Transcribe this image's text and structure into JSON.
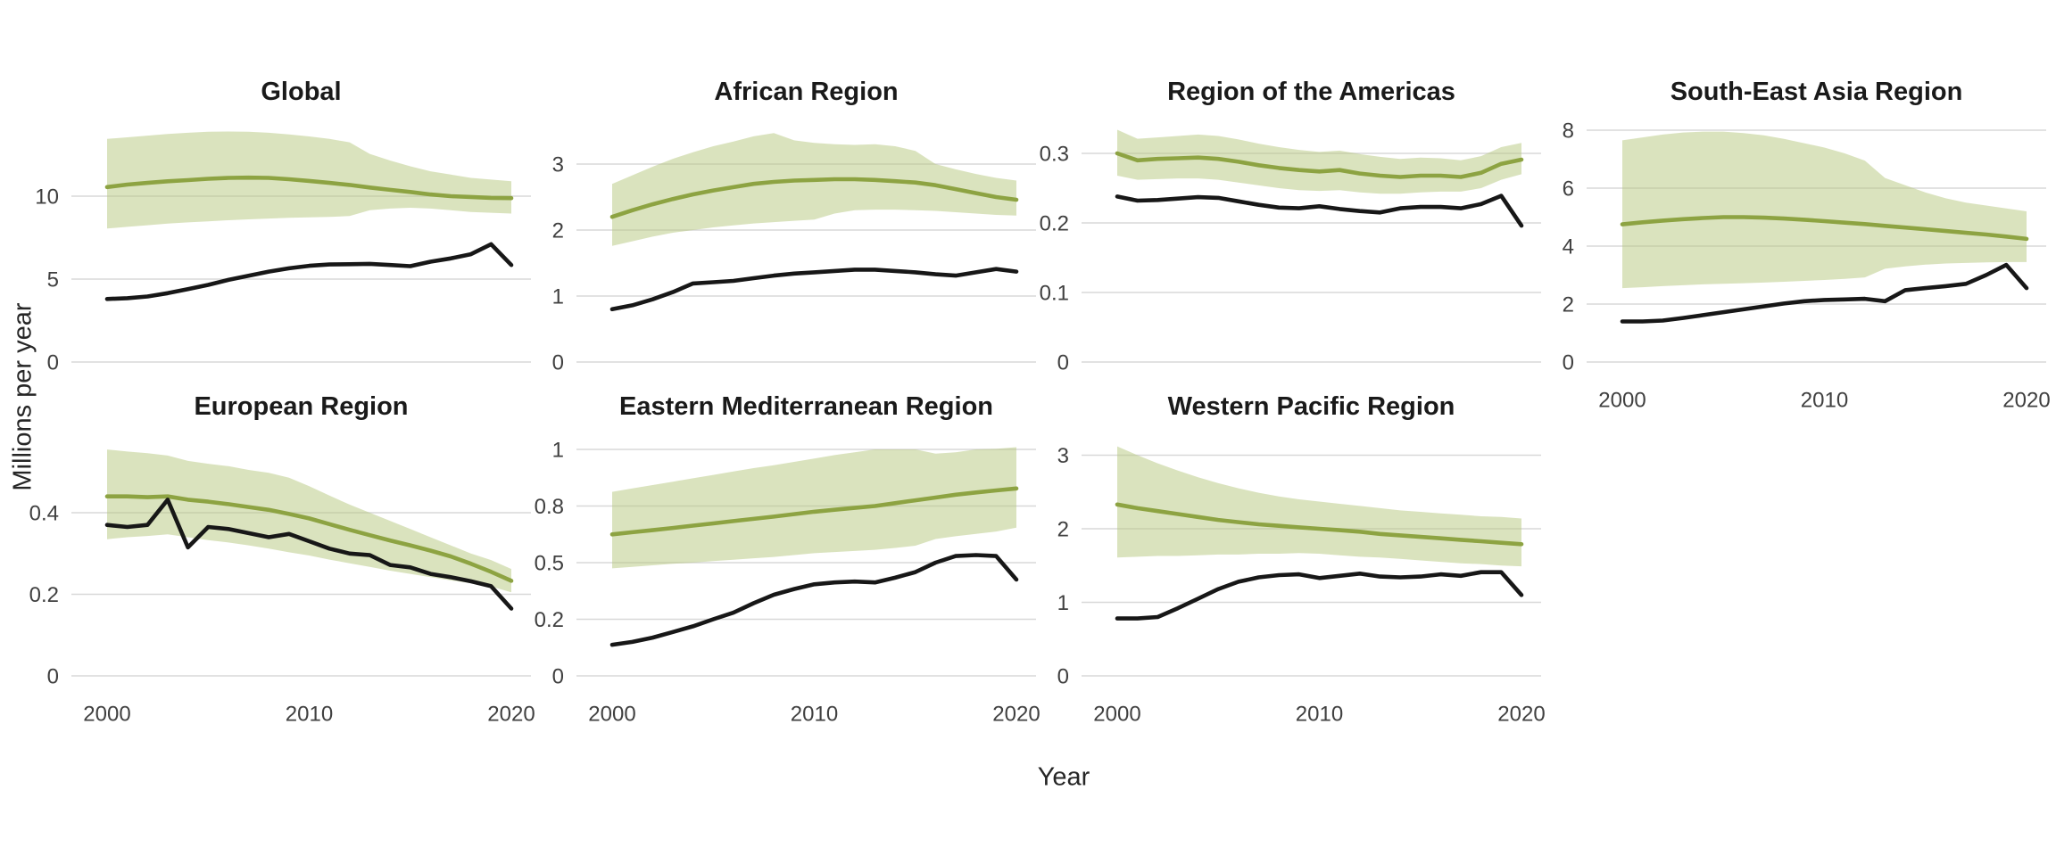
{
  "figure": {
    "xlabel": "Year",
    "ylabel": "Millions per year"
  },
  "colors": {
    "green_line": "#8da342",
    "band_fill": "#b5c87d",
    "black_line": "#171717",
    "gridline": "#d8d8d8",
    "tick_text": "#404040",
    "title_text": "#1a1a1a",
    "background": "#ffffff"
  },
  "chart_data": {
    "type": "line",
    "x": [
      2000,
      2001,
      2002,
      2003,
      2004,
      2005,
      2006,
      2007,
      2008,
      2009,
      2010,
      2011,
      2012,
      2013,
      2014,
      2015,
      2016,
      2017,
      2018,
      2019,
      2020
    ],
    "x_ticks": [
      2000,
      2010,
      2020
    ],
    "x_tick_labels": [
      "2000",
      "2010",
      "2020"
    ],
    "xlabel": "Year",
    "ylabel": "Millions per year",
    "grid": "horizontal-only",
    "legend": "none",
    "panels": [
      {
        "title": "Global",
        "row": 0,
        "col": 0,
        "x_axis_labels": false,
        "y_tick_values": [
          0,
          5,
          10
        ],
        "y_tick_labels": [
          "0",
          "5",
          "10"
        ],
        "green_line": [
          10.55,
          10.7,
          10.8,
          10.9,
          10.97,
          11.05,
          11.1,
          11.12,
          11.1,
          11.02,
          10.92,
          10.8,
          10.68,
          10.52,
          10.38,
          10.25,
          10.1,
          10.0,
          9.95,
          9.9,
          9.88
        ],
        "band_lower": [
          8.05,
          8.15,
          8.25,
          8.35,
          8.42,
          8.48,
          8.55,
          8.6,
          8.65,
          8.7,
          8.72,
          8.75,
          8.8,
          9.15,
          9.25,
          9.3,
          9.25,
          9.15,
          9.05,
          9.0,
          8.95
        ],
        "band_upper": [
          13.45,
          13.55,
          13.65,
          13.75,
          13.82,
          13.88,
          13.9,
          13.88,
          13.82,
          13.72,
          13.6,
          13.45,
          13.25,
          12.55,
          12.15,
          11.8,
          11.5,
          11.3,
          11.1,
          11.0,
          10.9
        ],
        "black_line": [
          3.8,
          3.85,
          3.95,
          4.15,
          4.4,
          4.65,
          4.95,
          5.2,
          5.45,
          5.65,
          5.8,
          5.88,
          5.9,
          5.92,
          5.85,
          5.78,
          6.05,
          6.25,
          6.5,
          7.1,
          5.85
        ]
      },
      {
        "title": "African Region",
        "row": 0,
        "col": 1,
        "x_axis_labels": false,
        "y_tick_values": [
          0,
          1,
          2,
          3
        ],
        "y_tick_labels": [
          "0",
          "1",
          "2",
          "3"
        ],
        "green_line": [
          2.2,
          2.3,
          2.39,
          2.47,
          2.54,
          2.6,
          2.65,
          2.7,
          2.73,
          2.75,
          2.76,
          2.77,
          2.77,
          2.76,
          2.74,
          2.72,
          2.68,
          2.62,
          2.56,
          2.5,
          2.46
        ],
        "band_lower": [
          1.76,
          1.83,
          1.9,
          1.96,
          2.0,
          2.04,
          2.07,
          2.1,
          2.12,
          2.14,
          2.16,
          2.25,
          2.3,
          2.31,
          2.31,
          2.3,
          2.29,
          2.27,
          2.25,
          2.23,
          2.22
        ],
        "band_upper": [
          2.7,
          2.83,
          2.96,
          3.08,
          3.18,
          3.27,
          3.34,
          3.42,
          3.47,
          3.36,
          3.32,
          3.3,
          3.29,
          3.3,
          3.27,
          3.2,
          3.0,
          2.92,
          2.85,
          2.79,
          2.75
        ],
        "black_line": [
          0.8,
          0.86,
          0.95,
          1.06,
          1.19,
          1.21,
          1.23,
          1.27,
          1.31,
          1.34,
          1.36,
          1.38,
          1.4,
          1.4,
          1.38,
          1.36,
          1.33,
          1.31,
          1.36,
          1.41,
          1.37
        ]
      },
      {
        "title": "Region of the Americas",
        "row": 0,
        "col": 2,
        "x_axis_labels": false,
        "y_tick_values": [
          0,
          0.1,
          0.2,
          0.3
        ],
        "y_tick_labels": [
          "0",
          "0.1",
          "0.2",
          "0.3"
        ],
        "green_line": [
          0.3,
          0.29,
          0.292,
          0.293,
          0.294,
          0.292,
          0.288,
          0.283,
          0.279,
          0.276,
          0.274,
          0.276,
          0.271,
          0.268,
          0.266,
          0.268,
          0.268,
          0.266,
          0.272,
          0.285,
          0.291
        ],
        "band_lower": [
          0.268,
          0.262,
          0.263,
          0.264,
          0.264,
          0.262,
          0.258,
          0.254,
          0.25,
          0.247,
          0.246,
          0.247,
          0.244,
          0.242,
          0.242,
          0.244,
          0.245,
          0.245,
          0.25,
          0.262,
          0.27
        ],
        "band_upper": [
          0.334,
          0.321,
          0.323,
          0.325,
          0.327,
          0.325,
          0.32,
          0.314,
          0.309,
          0.305,
          0.302,
          0.304,
          0.299,
          0.295,
          0.292,
          0.294,
          0.293,
          0.29,
          0.296,
          0.309,
          0.315
        ],
        "black_line": [
          0.238,
          0.232,
          0.233,
          0.235,
          0.237,
          0.236,
          0.231,
          0.226,
          0.222,
          0.221,
          0.224,
          0.22,
          0.217,
          0.215,
          0.221,
          0.223,
          0.223,
          0.221,
          0.227,
          0.239,
          0.196
        ]
      },
      {
        "title": "South-East Asia Region",
        "row": 0,
        "col": 3,
        "x_axis_labels": true,
        "y_tick_values": [
          0,
          2,
          4,
          6,
          8
        ],
        "y_tick_labels": [
          "0",
          "2",
          "4",
          "6",
          "8"
        ],
        "green_line": [
          4.75,
          4.82,
          4.88,
          4.93,
          4.97,
          5.0,
          5.0,
          4.98,
          4.95,
          4.91,
          4.86,
          4.81,
          4.76,
          4.7,
          4.64,
          4.58,
          4.52,
          4.46,
          4.4,
          4.33,
          4.25
        ],
        "band_lower": [
          2.55,
          2.58,
          2.62,
          2.65,
          2.68,
          2.7,
          2.72,
          2.74,
          2.77,
          2.8,
          2.83,
          2.87,
          2.92,
          3.22,
          3.3,
          3.36,
          3.4,
          3.42,
          3.44,
          3.45,
          3.45
        ],
        "band_upper": [
          7.65,
          7.75,
          7.85,
          7.92,
          7.95,
          7.95,
          7.9,
          7.82,
          7.7,
          7.55,
          7.4,
          7.2,
          6.95,
          6.35,
          6.1,
          5.85,
          5.65,
          5.5,
          5.4,
          5.3,
          5.2
        ],
        "black_line": [
          1.4,
          1.4,
          1.43,
          1.52,
          1.62,
          1.72,
          1.82,
          1.92,
          2.02,
          2.1,
          2.14,
          2.16,
          2.18,
          2.1,
          2.48,
          2.55,
          2.62,
          2.7,
          3.0,
          3.35,
          2.55
        ]
      },
      {
        "title": "European Region",
        "row": 1,
        "col": 0,
        "x_axis_labels": true,
        "y_tick_values": [
          0,
          0.2,
          0.4
        ],
        "y_tick_labels": [
          "0",
          "0.2",
          "0.4"
        ],
        "green_line": [
          0.44,
          0.44,
          0.438,
          0.44,
          0.432,
          0.427,
          0.421,
          0.414,
          0.407,
          0.397,
          0.386,
          0.372,
          0.358,
          0.345,
          0.332,
          0.32,
          0.307,
          0.293,
          0.275,
          0.255,
          0.233
        ],
        "band_lower": [
          0.335,
          0.34,
          0.343,
          0.347,
          0.34,
          0.333,
          0.327,
          0.32,
          0.312,
          0.303,
          0.295,
          0.285,
          0.276,
          0.267,
          0.258,
          0.25,
          0.242,
          0.234,
          0.227,
          0.219,
          0.205
        ],
        "band_upper": [
          0.555,
          0.55,
          0.546,
          0.54,
          0.527,
          0.52,
          0.514,
          0.505,
          0.498,
          0.486,
          0.465,
          0.442,
          0.42,
          0.4,
          0.38,
          0.36,
          0.34,
          0.32,
          0.3,
          0.284,
          0.262
        ],
        "black_line": [
          0.37,
          0.365,
          0.37,
          0.432,
          0.315,
          0.365,
          0.36,
          0.35,
          0.34,
          0.348,
          0.33,
          0.312,
          0.3,
          0.296,
          0.272,
          0.266,
          0.25,
          0.242,
          0.232,
          0.22,
          0.165
        ]
      },
      {
        "title": "Eastern Mediterranean Region",
        "row": 1,
        "col": 1,
        "x_axis_labels": true,
        "y_tick_values": [
          0,
          0.2,
          0.5,
          0.8,
          1
        ],
        "y_tick_labels": [
          "0",
          "0.2",
          "0.5",
          "0.8",
          "1"
        ],
        "green_line": [
          0.65,
          0.661,
          0.672,
          0.684,
          0.696,
          0.708,
          0.72,
          0.732,
          0.744,
          0.757,
          0.77,
          0.78,
          0.79,
          0.8,
          0.81,
          0.82,
          0.83,
          0.84,
          0.848,
          0.855,
          0.862
        ],
        "band_lower": [
          0.47,
          0.478,
          0.486,
          0.494,
          0.5,
          0.508,
          0.515,
          0.523,
          0.53,
          0.54,
          0.55,
          0.556,
          0.562,
          0.568,
          0.578,
          0.59,
          0.625,
          0.64,
          0.652,
          0.665,
          0.685
        ],
        "band_upper": [
          0.85,
          0.862,
          0.874,
          0.886,
          0.898,
          0.91,
          0.922,
          0.934,
          0.944,
          0.956,
          0.968,
          0.98,
          0.99,
          1.0,
          1.0,
          1.0,
          0.985,
          0.99,
          1.0,
          1.002,
          1.008
        ],
        "black_line": [
          0.11,
          0.12,
          0.135,
          0.155,
          0.175,
          0.2,
          0.235,
          0.285,
          0.33,
          0.36,
          0.385,
          0.395,
          0.4,
          0.395,
          0.42,
          0.45,
          0.5,
          0.535,
          0.54,
          0.535,
          0.41
        ]
      },
      {
        "title": "Western Pacific Region",
        "row": 1,
        "col": 2,
        "x_axis_labels": true,
        "y_tick_values": [
          0,
          1,
          2,
          3
        ],
        "y_tick_labels": [
          "0",
          "1",
          "2",
          "3"
        ],
        "green_line": [
          2.33,
          2.28,
          2.24,
          2.2,
          2.16,
          2.12,
          2.09,
          2.06,
          2.04,
          2.02,
          2.0,
          1.98,
          1.96,
          1.93,
          1.91,
          1.89,
          1.87,
          1.85,
          1.83,
          1.81,
          1.79
        ],
        "band_lower": [
          1.61,
          1.62,
          1.63,
          1.63,
          1.64,
          1.65,
          1.65,
          1.66,
          1.66,
          1.67,
          1.66,
          1.64,
          1.62,
          1.61,
          1.59,
          1.57,
          1.55,
          1.53,
          1.52,
          1.5,
          1.49
        ],
        "band_upper": [
          3.12,
          3.0,
          2.89,
          2.79,
          2.7,
          2.62,
          2.55,
          2.49,
          2.44,
          2.4,
          2.37,
          2.34,
          2.31,
          2.28,
          2.25,
          2.23,
          2.21,
          2.19,
          2.17,
          2.16,
          2.14
        ],
        "black_line": [
          0.78,
          0.78,
          0.8,
          0.92,
          1.05,
          1.18,
          1.28,
          1.34,
          1.37,
          1.38,
          1.33,
          1.36,
          1.39,
          1.35,
          1.34,
          1.35,
          1.38,
          1.36,
          1.41,
          1.41,
          1.1
        ]
      }
    ]
  }
}
